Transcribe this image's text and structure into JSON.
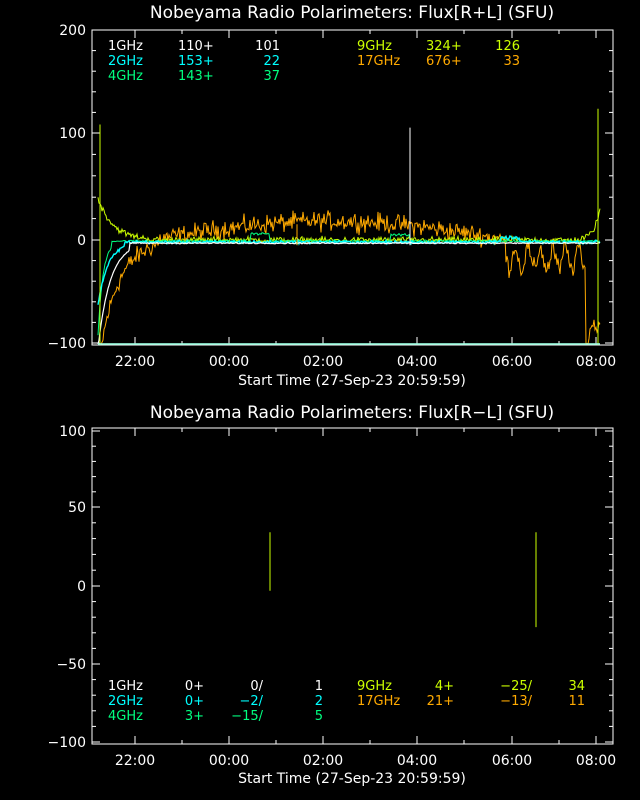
{
  "chart_data": [
    {
      "type": "line",
      "title": "Nobeyama Radio Polarimeters: Flux[R+L] (SFU)",
      "xlabel": "Start Time (27-Sep-23 20:59:59)",
      "xticks": [
        "22:00",
        "00:00",
        "02:00",
        "04:00",
        "06:00",
        "08:00"
      ],
      "yticks": [
        "200",
        "100",
        "0",
        "−100"
      ],
      "ylim": [
        -100,
        200
      ],
      "legend": [
        {
          "freq": "1GHz",
          "base": "110+",
          "peak": "101",
          "color": "#ffffff"
        },
        {
          "freq": "2GHz",
          "base": "153+",
          "peak": "22",
          "color": "#00ffff"
        },
        {
          "freq": "4GHz",
          "base": "143+",
          "peak": "37",
          "color": "#00ff80"
        },
        {
          "freq": "9GHz",
          "base": "324+",
          "peak": "126",
          "color": "#ccff00"
        },
        {
          "freq": "17GHz",
          "base": "676+",
          "peak": "33",
          "color": "#ffaa00"
        }
      ]
    },
    {
      "type": "line",
      "title": "Nobeyama Radio Polarimeters: Flux[R−L] (SFU)",
      "xlabel": "Start Time (27-Sep-23 20:59:59)",
      "xticks": [
        "22:00",
        "00:00",
        "02:00",
        "04:00",
        "06:00",
        "08:00"
      ],
      "yticks": [
        "100",
        "50",
        "0",
        "−50",
        "−100"
      ],
      "ylim": [
        -100,
        100
      ],
      "legend": [
        {
          "freq": "1GHz",
          "base": "0+",
          "mid": "0/",
          "peak": "1",
          "color": "#ffffff"
        },
        {
          "freq": "2GHz",
          "base": "0+",
          "mid": "−2/",
          "peak": "2",
          "color": "#00ffff"
        },
        {
          "freq": "4GHz",
          "base": "3+",
          "mid": "−15/",
          "peak": "5",
          "color": "#00ff80"
        },
        {
          "freq": "9GHz",
          "base": "4+",
          "mid": "−25/",
          "peak": "34",
          "color": "#ccff00"
        },
        {
          "freq": "17GHz",
          "base": "21+",
          "mid": "−13/",
          "peak": "11",
          "color": "#ffaa00"
        }
      ]
    }
  ]
}
